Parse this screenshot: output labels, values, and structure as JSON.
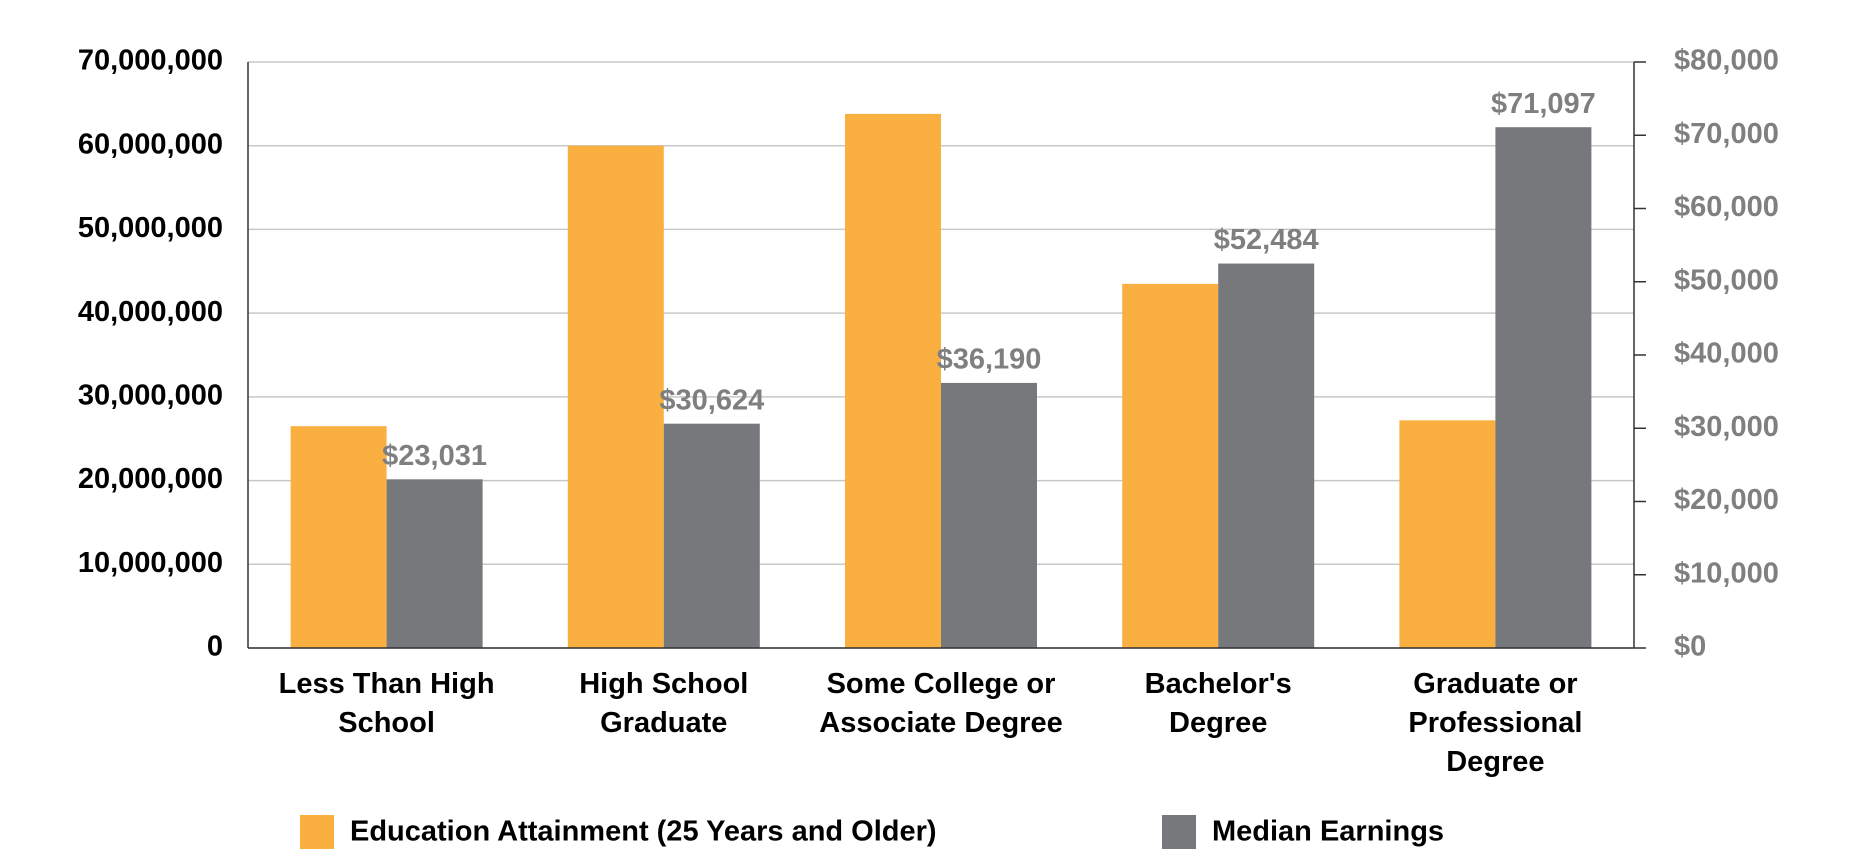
{
  "chart_data": {
    "type": "bar",
    "categories": [
      "Less Than High School",
      "High School Graduate",
      "Some College or Associate Degree",
      "Bachelor's Degree",
      "Graduate or Professional Degree"
    ],
    "series": [
      {
        "name": "Education Attainment (25 Years and Older)",
        "color": "#f9b040",
        "values": [
          26500000,
          60000000,
          63800000,
          43500000,
          27200000
        ]
      },
      {
        "name": "Median Earnings",
        "color": "#77787b",
        "axis": "y2",
        "values": [
          23031,
          30624,
          36190,
          52484,
          71097
        ],
        "value_labels": [
          "$23,031",
          "$30,624",
          "$36,190",
          "$52,484",
          "$71,097"
        ]
      }
    ],
    "ylim": [
      0,
      70000000
    ],
    "yticks": [
      0,
      {
        "value": 10000000,
        "label": "10,000,000"
      },
      {
        "value": 20000000,
        "label": "20,000,000"
      },
      {
        "value": 30000000,
        "label": "30,000,000"
      },
      {
        "value": 40000000,
        "label": "40,000,000"
      },
      {
        "value": 50000000,
        "label": "50,000,000"
      },
      {
        "value": 60000000,
        "label": "60,000,000"
      },
      {
        "value": 70000000,
        "label": "70,000,000"
      }
    ],
    "y2lim": [
      0,
      80000
    ],
    "y2ticks": [
      {
        "value": 0,
        "label": "$0"
      },
      {
        "value": 10000,
        "label": "$10,000"
      },
      {
        "value": 20000,
        "label": "$20,000"
      },
      {
        "value": 30000,
        "label": "$30,000"
      },
      {
        "value": 40000,
        "label": "$40,000"
      },
      {
        "value": 50000,
        "label": "$50,000"
      },
      {
        "value": 60000,
        "label": "$60,000"
      },
      {
        "value": 70000,
        "label": "$70,000"
      },
      {
        "value": 80000,
        "label": "$80,000"
      }
    ],
    "grid": true,
    "legend": "bottom"
  }
}
